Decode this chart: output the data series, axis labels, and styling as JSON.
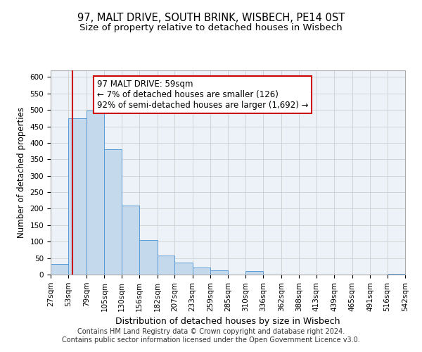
{
  "title": "97, MALT DRIVE, SOUTH BRINK, WISBECH, PE14 0ST",
  "subtitle": "Size of property relative to detached houses in Wisbech",
  "xlabel": "Distribution of detached houses by size in Wisbech",
  "ylabel": "Number of detached properties",
  "bin_edges": [
    27,
    53,
    79,
    105,
    130,
    156,
    182,
    207,
    233,
    259,
    285,
    310,
    336,
    362,
    388,
    413,
    439,
    465,
    491,
    516,
    542
  ],
  "bin_labels": [
    "27sqm",
    "53sqm",
    "79sqm",
    "105sqm",
    "130sqm",
    "156sqm",
    "182sqm",
    "207sqm",
    "233sqm",
    "259sqm",
    "285sqm",
    "310sqm",
    "336sqm",
    "362sqm",
    "388sqm",
    "413sqm",
    "439sqm",
    "465sqm",
    "491sqm",
    "516sqm",
    "542sqm"
  ],
  "counts": [
    32,
    474,
    498,
    381,
    210,
    105,
    57,
    36,
    21,
    12,
    0,
    10,
    0,
    0,
    0,
    0,
    0,
    0,
    0,
    2
  ],
  "bar_color": "#c5d9ed",
  "bar_edge_color": "#5b9bd5",
  "grid_color": "#c8c8c8",
  "background_color": "#edf2f9",
  "fig_background": "#ffffff",
  "property_line_x": 59,
  "property_line_color": "#cc0000",
  "annotation_text": "97 MALT DRIVE: 59sqm\n← 7% of detached houses are smaller (126)\n92% of semi-detached houses are larger (1,692) →",
  "annotation_box_color": "#ffffff",
  "annotation_box_edge_color": "#cc0000",
  "ylim": [
    0,
    620
  ],
  "yticks": [
    0,
    50,
    100,
    150,
    200,
    250,
    300,
    350,
    400,
    450,
    500,
    550,
    600
  ],
  "footer_text": "Contains HM Land Registry data © Crown copyright and database right 2024.\nContains public sector information licensed under the Open Government Licence v3.0.",
  "title_fontsize": 10.5,
  "subtitle_fontsize": 9.5,
  "xlabel_fontsize": 9,
  "ylabel_fontsize": 8.5,
  "tick_fontsize": 7.5,
  "annotation_fontsize": 8.5,
  "footer_fontsize": 7
}
